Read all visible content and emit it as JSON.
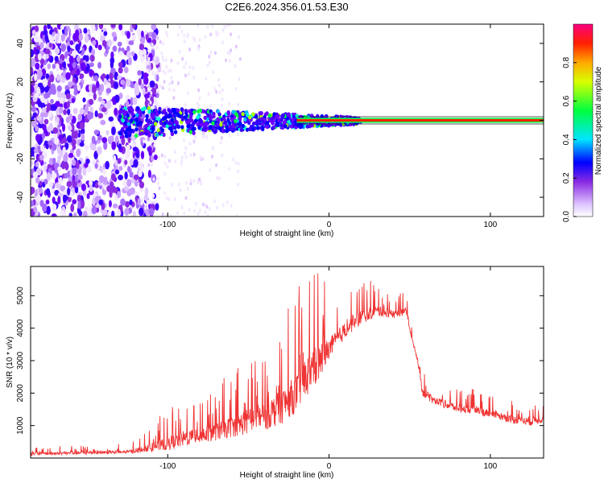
{
  "title": "C2E6.2024.356.01.53.E30",
  "chart_data": [
    {
      "type": "heatmap",
      "xlabel": "Height of straight line (km)",
      "ylabel": "Frequency (Hz)",
      "xlim": [
        -185,
        133
      ],
      "ylim": [
        -50,
        50
      ],
      "xticks": [
        -100,
        0,
        100
      ],
      "yticks": [
        -40,
        -20,
        0,
        20,
        40
      ],
      "colorbar": {
        "label": "Normalized spectral amplitude",
        "range": [
          0.0,
          1.0
        ],
        "ticks": [
          0.0,
          0.2,
          0.4,
          0.6,
          0.8
        ]
      },
      "features": {
        "noise_region_x": [
          -185,
          -115
        ],
        "signal_band_x": [
          -130,
          20
        ],
        "signal_band_freq": [
          -10,
          6
        ],
        "strong_line_x": [
          -20,
          133
        ],
        "strong_line_freq": 0
      }
    },
    {
      "type": "line",
      "xlabel": "Height of straight line (km)",
      "ylabel": "SNR (10 * v/v)",
      "xlim": [
        -185,
        133
      ],
      "ylim": [
        0,
        5900
      ],
      "xticks": [
        -100,
        0,
        100
      ],
      "yticks": [
        1000,
        2000,
        3000,
        4000,
        5000
      ],
      "color": "#ef3333",
      "envelope_x": [
        -185,
        -150,
        -125,
        -115,
        -100,
        -90,
        -80,
        -70,
        -60,
        -50,
        -40,
        -30,
        -20,
        -15,
        -10,
        -5,
        0,
        10,
        20,
        30,
        40,
        48,
        52,
        55,
        58,
        65,
        80,
        100,
        115,
        125,
        133
      ],
      "envelope_base": [
        120,
        150,
        170,
        250,
        400,
        550,
        650,
        750,
        900,
        1050,
        1200,
        1450,
        1900,
        2300,
        2600,
        2900,
        3300,
        3900,
        4300,
        4500,
        4400,
        4500,
        3500,
        3000,
        2000,
        1750,
        1500,
        1350,
        1150,
        1100,
        1200
      ],
      "envelope_spread": [
        250,
        250,
        300,
        500,
        1200,
        1400,
        1500,
        1500,
        1800,
        2300,
        2500,
        3000,
        3300,
        3600,
        3800,
        3200,
        1800,
        1400,
        1300,
        900,
        700,
        600,
        500,
        500,
        700,
        700,
        700,
        700,
        700,
        700,
        700
      ]
    }
  ]
}
